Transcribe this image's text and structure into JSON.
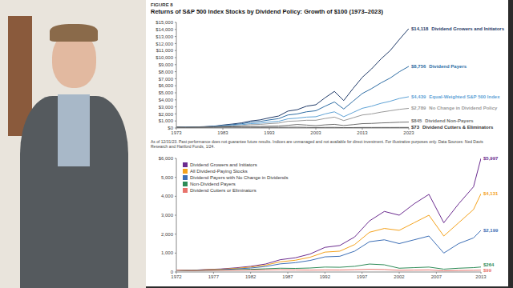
{
  "chart_data": [
    {
      "type": "line",
      "figure": "FIGURE 8",
      "title": "Returns of S&P 500 Index Stocks by Dividend Policy: Growth of $100 (1973–2023)",
      "note": "As of 12/31/23. Past performance does not guarantee future results. Indices are unmanaged and not available for direct investment. For illustrative purposes only. Data Sources: Ned Davis Research and Hartford Funds, 1/24.",
      "x": [
        1973,
        1975,
        1977,
        1979,
        1981,
        1983,
        1985,
        1987,
        1989,
        1991,
        1993,
        1995,
        1997,
        1999,
        2001,
        2003,
        2005,
        2007,
        2009,
        2011,
        2013,
        2015,
        2017,
        2019,
        2021,
        2023
      ],
      "xlim": [
        1973,
        2023
      ],
      "xticks": [
        1973,
        1983,
        1993,
        2003,
        2013,
        2023
      ],
      "ylim": [
        0,
        15000
      ],
      "yticks": [
        {
          "value": 0,
          "label": "$0"
        },
        {
          "value": 1000,
          "label": "$1,000"
        },
        {
          "value": 2000,
          "label": "$2,000"
        },
        {
          "value": 3000,
          "label": "$3,000"
        },
        {
          "value": 4000,
          "label": "$4,000"
        },
        {
          "value": 5000,
          "label": "$5,000"
        },
        {
          "value": 6000,
          "label": "$6,000"
        },
        {
          "value": 7000,
          "label": "$7,000"
        },
        {
          "value": 8000,
          "label": "$8,000"
        },
        {
          "value": 9000,
          "label": "$9,000"
        },
        {
          "value": 10000,
          "label": "$10,000"
        },
        {
          "value": 11000,
          "label": "$11,000"
        },
        {
          "value": 12000,
          "label": "$12,000"
        },
        {
          "value": 13000,
          "label": "$13,000"
        },
        {
          "value": 14000,
          "label": "$14,000"
        },
        {
          "value": 15000,
          "label": "$15,000"
        }
      ],
      "grid": false,
      "legend": "right",
      "series": [
        {
          "name": "Dividend Growers and Initiators",
          "end_label": "$14,118",
          "color": "#1f3a68",
          "values": [
            100,
            110,
            150,
            190,
            260,
            420,
            560,
            720,
            1000,
            1150,
            1450,
            1700,
            2400,
            2600,
            3100,
            3300,
            4300,
            5200,
            3900,
            5600,
            7200,
            8400,
            9800,
            11000,
            12600,
            14118
          ]
        },
        {
          "name": "Dividend Payers",
          "end_label": "$8,756",
          "color": "#2e6da4",
          "values": [
            100,
            105,
            140,
            170,
            230,
            360,
            470,
            600,
            820,
            930,
            1150,
            1330,
            1850,
            2000,
            2300,
            2450,
            3100,
            3700,
            2700,
            3800,
            4900,
            5600,
            6400,
            7100,
            8000,
            8756
          ]
        },
        {
          "name": "Equal-Weighted S&P 500 Index",
          "end_label": "$4,439",
          "color": "#5fa3d6",
          "values": [
            100,
            95,
            125,
            150,
            200,
            300,
            380,
            470,
            620,
            680,
            850,
            950,
            1300,
            1400,
            1550,
            1600,
            2000,
            2300,
            1600,
            2200,
            2800,
            3100,
            3500,
            3800,
            4200,
            4439
          ]
        },
        {
          "name": "No Change in Dividend Policy",
          "end_label": "$2,789",
          "color": "#9a9a9a",
          "values": [
            100,
            95,
            115,
            135,
            170,
            240,
            300,
            360,
            470,
            510,
            620,
            700,
            950,
            1000,
            1100,
            1100,
            1350,
            1550,
            1050,
            1450,
            1850,
            2000,
            2250,
            2450,
            2650,
            2789
          ]
        },
        {
          "name": "Dividend Non-Payers",
          "end_label": "$845",
          "color": "#6f6f6f",
          "values": [
            100,
            80,
            95,
            105,
            120,
            150,
            170,
            190,
            220,
            220,
            260,
            280,
            380,
            500,
            420,
            330,
            450,
            520,
            350,
            480,
            620,
            650,
            720,
            760,
            820,
            845
          ]
        },
        {
          "name": "Dividend Cutters & Eliminators",
          "end_label": "$73",
          "color": "#333333",
          "values": [
            100,
            80,
            90,
            95,
            100,
            110,
            105,
            100,
            95,
            85,
            90,
            85,
            95,
            100,
            80,
            65,
            75,
            80,
            50,
            60,
            70,
            68,
            72,
            70,
            74,
            73
          ]
        }
      ]
    },
    {
      "type": "line",
      "x": [
        1972,
        1974,
        1976,
        1978,
        1980,
        1982,
        1984,
        1986,
        1988,
        1990,
        1992,
        1994,
        1996,
        1998,
        2000,
        2002,
        2004,
        2006,
        2008,
        2010,
        2012,
        2013
      ],
      "xlim": [
        1972,
        2013
      ],
      "xticks": [
        1972,
        1977,
        1982,
        1987,
        1992,
        1997,
        2002,
        2007,
        2013
      ],
      "ylim": [
        0,
        6000
      ],
      "yticks": [
        0,
        {
          "value": 1000,
          "label": "1,000"
        },
        {
          "value": 2000,
          "label": "2,000"
        },
        {
          "value": 3000,
          "label": "3,000"
        },
        {
          "value": 4000,
          "label": "4,000"
        },
        {
          "value": 5000,
          "label": "5,000"
        },
        {
          "value": 6000,
          "label": "$6,000"
        }
      ],
      "grid": false,
      "legend": "upper left",
      "series": [
        {
          "name": "Dividend Growers and Initiators",
          "end_label": "$5,997",
          "color": "#6b2c8f",
          "values": [
            100,
            90,
            130,
            160,
            220,
            300,
            420,
            650,
            750,
            950,
            1300,
            1400,
            1850,
            2700,
            3200,
            3000,
            3600,
            4100,
            2600,
            3600,
            4500,
            5997
          ]
        },
        {
          "name": "All Dividend-Paying Stocks",
          "end_label": "$4,131",
          "color": "#f4a21c",
          "values": [
            100,
            85,
            120,
            145,
            190,
            260,
            360,
            540,
            620,
            780,
            1050,
            1100,
            1450,
            2100,
            2300,
            2200,
            2600,
            3000,
            1900,
            2600,
            3300,
            4131
          ]
        },
        {
          "name": "Dividend Payers with No Change in Dividends",
          "end_label": "$2,199",
          "color": "#3d6fb6",
          "values": [
            100,
            80,
            105,
            125,
            160,
            210,
            290,
            430,
            490,
            610,
            800,
            830,
            1100,
            1600,
            1700,
            1500,
            1700,
            1900,
            1000,
            1500,
            1800,
            2199
          ]
        },
        {
          "name": "Non-Dividend Payers",
          "end_label": "$264",
          "color": "#2e8b57",
          "values": [
            100,
            70,
            90,
            100,
            120,
            140,
            170,
            200,
            190,
            210,
            260,
            250,
            300,
            420,
            380,
            200,
            230,
            260,
            150,
            200,
            230,
            264
          ]
        },
        {
          "name": "Dividend Cutters or Eliminators",
          "end_label": "$99",
          "color": "#e8736c",
          "values": [
            100,
            75,
            85,
            90,
            95,
            100,
            110,
            120,
            110,
            100,
            110,
            105,
            120,
            140,
            130,
            90,
            100,
            110,
            60,
            80,
            90,
            99
          ]
        }
      ]
    }
  ]
}
